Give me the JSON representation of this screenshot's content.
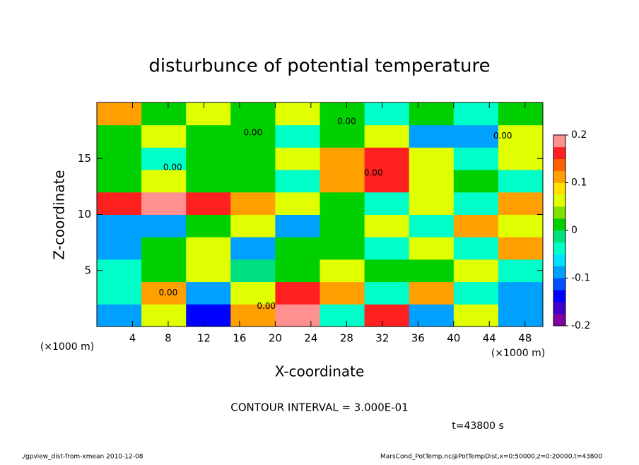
{
  "chart_data": {
    "type": "heatmap",
    "title": "disturbunce of potential temperature",
    "x_label": "X-coordinate",
    "y_label": "Z-coordinate",
    "x_unit": "(×1000 m)",
    "y_unit": "(×1000 m)",
    "xlim": [
      0,
      50
    ],
    "ylim": [
      0,
      20
    ],
    "xticks": [
      4,
      8,
      12,
      16,
      20,
      24,
      28,
      32,
      36,
      40,
      44,
      48
    ],
    "yticks": [
      5,
      10,
      15
    ],
    "x_edges": [
      0,
      5,
      10,
      15,
      20,
      25,
      30,
      35,
      40,
      45,
      50
    ],
    "z_edges": [
      0,
      2,
      4,
      6,
      8,
      10,
      12,
      14,
      16,
      18,
      20
    ],
    "values": [
      [
        -0.1,
        0.05,
        -0.15,
        0.1,
        0.2,
        -0.05,
        0.15,
        -0.1,
        0.05,
        -0.1
      ],
      [
        -0.05,
        0.1,
        -0.1,
        0.05,
        0.15,
        0.1,
        -0.05,
        0.1,
        -0.05,
        -0.1
      ],
      [
        -0.05,
        0,
        0.05,
        -0.02,
        0,
        0.05,
        0,
        0.02,
        0.05,
        -0.05
      ],
      [
        -0.1,
        0,
        0.05,
        -0.1,
        0,
        0,
        -0.05,
        0.05,
        -0.05,
        0.1
      ],
      [
        -0.1,
        -0.08,
        0,
        0.05,
        -0.1,
        0,
        0.05,
        -0.05,
        0.1,
        0.05
      ],
      [
        0.15,
        0.2,
        0.15,
        0.1,
        0.05,
        0,
        -0.05,
        0.05,
        -0.05,
        0.1
      ],
      [
        0,
        0.05,
        0.02,
        0,
        -0.05,
        0.1,
        0.15,
        0.05,
        0,
        -0.05
      ],
      [
        0,
        -0.05,
        0.02,
        0,
        0.05,
        0.1,
        0.15,
        0.05,
        -0.05,
        0.05
      ],
      [
        0,
        0.05,
        0,
        0,
        -0.05,
        0,
        0.05,
        -0.1,
        -0.1,
        0.05
      ],
      [
        0.1,
        0,
        0.05,
        0,
        0.05,
        0,
        -0.05,
        0,
        -0.05,
        0
      ]
    ],
    "colorbar_levels": [
      -0.2,
      -0.175,
      -0.15,
      -0.125,
      -0.1,
      -0.075,
      -0.05,
      -0.025,
      0,
      0.025,
      0.05,
      0.075,
      0.1,
      0.125,
      0.15,
      0.175,
      0.2
    ],
    "colors": [
      "#8000a0",
      "#4000c8",
      "#0000ff",
      "#0050ff",
      "#00a0ff",
      "#00e0ff",
      "#00ffc8",
      "#00e080",
      "#00d000",
      "#80e000",
      "#e0ff00",
      "#ffe000",
      "#ffa000",
      "#ff6000",
      "#ff2020",
      "#ff9090"
    ],
    "colorbar_ticks": [
      -0.2,
      -0.1,
      0,
      0.1,
      0.2
    ],
    "annotations": [
      {
        "text": "0.00",
        "x": 28,
        "z": 18.3
      },
      {
        "text": "0.00",
        "x": 45.5,
        "z": 17
      },
      {
        "text": "0.00",
        "x": 17.5,
        "z": 17.3
      },
      {
        "text": "0.00",
        "x": 8.5,
        "z": 14.2
      },
      {
        "text": "0.00",
        "x": 31,
        "z": 13.7
      },
      {
        "text": "0.00",
        "x": 8,
        "z": 3
      },
      {
        "text": "0.00",
        "x": 19,
        "z": 1.8
      }
    ],
    "contour_interval": "CONTOUR INTERVAL = 3.000E-01",
    "time_label": "t=43800 s",
    "footer_left": "./gpview_dist-from-xmean  2010-12-08",
    "footer_right": "MarsCond_PotTemp.nc@PotTempDist,x=0:50000,z=0:20000,t=43800"
  }
}
